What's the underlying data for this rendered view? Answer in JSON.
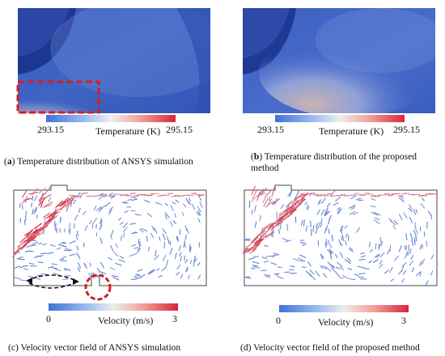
{
  "panels": [
    {
      "letter": "a",
      "caption": "Temperature distribution of ANSYS simulation",
      "colorbar": {
        "min": "293.15",
        "max": "295.15",
        "label": "Temperature (K)"
      }
    },
    {
      "letter": "b",
      "caption_line1": "Temperature distribution of the proposed",
      "caption_line2": "method",
      "colorbar": {
        "min": "293.15",
        "max": "295.15",
        "label": "Temperature (K)"
      }
    },
    {
      "letter": "c",
      "caption": "Velocity vector field of ANSYS simulation",
      "colorbar": {
        "min": "0",
        "max": "3",
        "label": "Velocity (m/s)"
      }
    },
    {
      "letter": "d",
      "caption": "Velocity vector field of the proposed method",
      "colorbar": {
        "min": "0",
        "max": "3",
        "label": "Velocity (m/s)"
      }
    }
  ],
  "colors": {
    "field_blue": "#3657b8",
    "field_deep": "#1f3e9c",
    "warm": "#e9a078",
    "cbar_low": "#3f73d8",
    "cbar_mid": "#eeeeee",
    "cbar_high": "#d8263a",
    "highlight_red": "#d21f26"
  }
}
